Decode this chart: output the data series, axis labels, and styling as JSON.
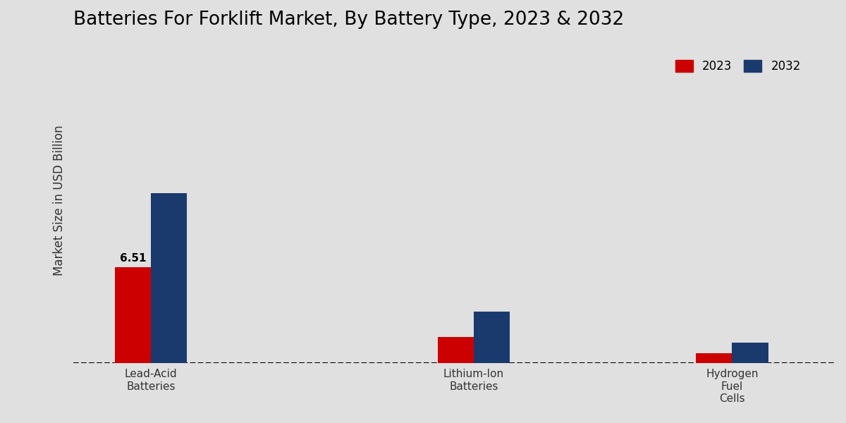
{
  "title": "Batteries For Forklift Market, By Battery Type, 2023 & 2032",
  "ylabel": "Market Size in USD Billion",
  "categories": [
    "Lead-Acid\nBatteries",
    "Lithium-Ion\nBatteries",
    "Hydrogen\nFuel\nCells"
  ],
  "values_2023": [
    6.51,
    1.75,
    0.65
  ],
  "values_2032": [
    11.5,
    3.5,
    1.4
  ],
  "color_2023": "#cc0000",
  "color_2032": "#1a3a6e",
  "label_2023": "2023",
  "label_2032": "2032",
  "annotation_value": "6.51",
  "background_color": "#e0e0e0",
  "bar_width": 0.28,
  "title_fontsize": 19,
  "axis_label_fontsize": 12,
  "tick_fontsize": 11,
  "ylim": [
    0,
    22
  ],
  "xlim": [
    -0.6,
    5.3
  ]
}
